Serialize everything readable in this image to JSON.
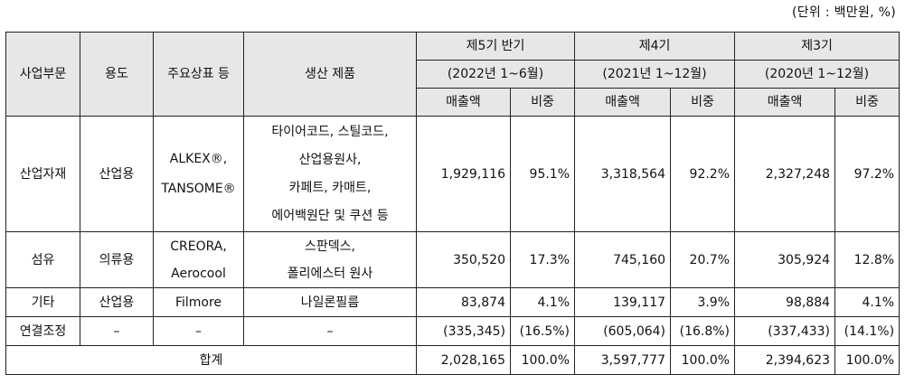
{
  "unit_note": "(단위 : 백만원, %)",
  "headers": {
    "segment": "사업부문",
    "use": "용도",
    "brand": "주요상표 등",
    "product": "생산 제품",
    "periods": [
      {
        "title": "제5기 반기",
        "range": "(2022년 1~6월)"
      },
      {
        "title": "제4기",
        "range": "(2021년 1~12월)"
      },
      {
        "title": "제3기",
        "range": "(2020년 1~12월)"
      }
    ],
    "sales": "매출액",
    "share": "비중"
  },
  "rows": [
    {
      "segment": "산업자재",
      "use": "산업용",
      "brand": [
        "ALKEX®,",
        "TANSOME®"
      ],
      "product": [
        "타이어코드, 스틸코드,",
        "산업용원사,",
        "카페트, 카매트,",
        "에어백원단 및 쿠션 등"
      ],
      "values": [
        "1,929,116",
        "95.1%",
        "3,318,564",
        "92.2%",
        "2,327,248",
        "97.2%"
      ]
    },
    {
      "segment": "섬유",
      "use": "의류용",
      "brand": [
        "CREORA,",
        "Aerocool"
      ],
      "product": [
        "스판덱스,",
        "폴리에스터 원사"
      ],
      "values": [
        "350,520",
        "17.3%",
        "745,160",
        "20.7%",
        "305,924",
        "12.8%"
      ]
    },
    {
      "segment": "기타",
      "use": "산업용",
      "brand": [
        "Filmore"
      ],
      "product": [
        "나일론필름"
      ],
      "values": [
        "83,874",
        "4.1%",
        "139,117",
        "3.9%",
        "98,884",
        "4.1%"
      ]
    },
    {
      "segment": "연결조정",
      "use": "–",
      "brand": [
        "–"
      ],
      "product": [
        "–"
      ],
      "values": [
        "(335,345)",
        "(16.5%)",
        "(605,064)",
        "(16.8%)",
        "(337,433)",
        "(14.1%)"
      ]
    }
  ],
  "total": {
    "label": "합계",
    "values": [
      "2,028,165",
      "100.0%",
      "3,597,777",
      "100.0%",
      "2,394,623",
      "100.0%"
    ]
  }
}
